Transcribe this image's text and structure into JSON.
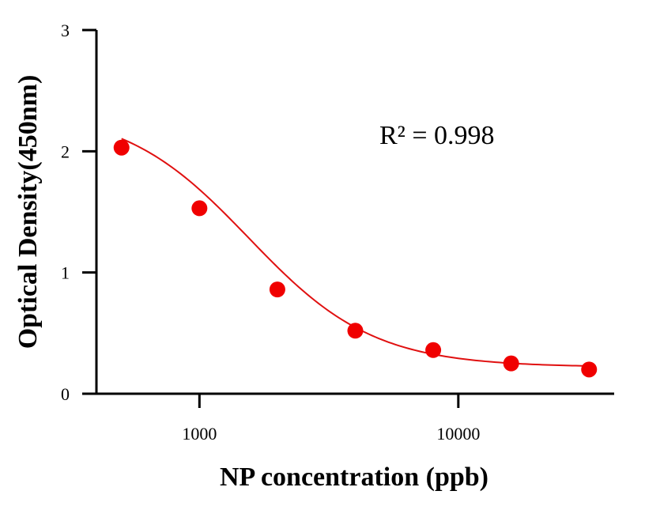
{
  "chart_data": {
    "type": "scatter",
    "title": "",
    "xlabel": "NP concentration (ppb)",
    "ylabel": "Optical Density(450nm)",
    "xscale": "log",
    "xlim": [
      400,
      40000
    ],
    "ylim": [
      0,
      3
    ],
    "x_ticks": [
      1000,
      10000
    ],
    "x_tick_labels": [
      "1000",
      "10000"
    ],
    "y_ticks": [
      0,
      1,
      2,
      3
    ],
    "y_tick_labels": [
      "0",
      "1",
      "2",
      "3"
    ],
    "annotation": "R² = 0.998",
    "point_color": "#f00000",
    "curve_color": "#e01010",
    "series": [
      {
        "name": "NP",
        "x": [
          500,
          1000,
          2000,
          4000,
          8000,
          16000,
          32000
        ],
        "y": [
          2.03,
          1.53,
          0.86,
          0.52,
          0.36,
          0.25,
          0.2
        ]
      }
    ],
    "fit": {
      "model": "4PL",
      "top": 2.35,
      "bottom": 0.22,
      "ec50": 1550,
      "hill": 1.8,
      "x_range": [
        500,
        32000
      ]
    }
  }
}
